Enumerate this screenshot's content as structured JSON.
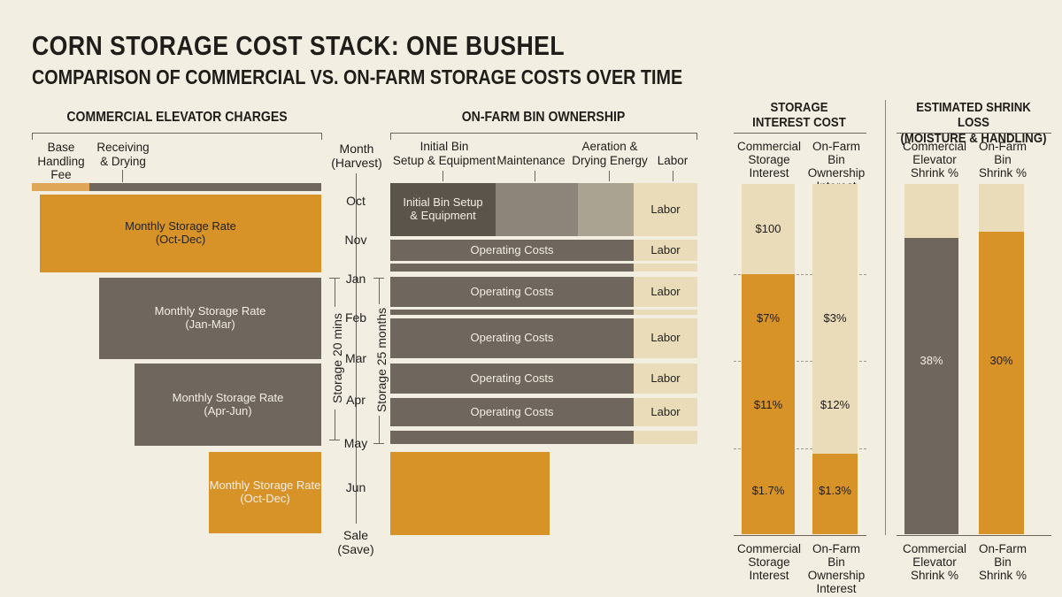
{
  "title": "CORN STORAGE COST STACK: ONE BUSHEL",
  "subtitle": "COMPARISON OF COMMERCIAL VS. ON-FARM STORAGE COSTS OVER TIME",
  "colors": {
    "orange": "#d79328",
    "gray": "#6f675d",
    "dark_gray": "#5b544b",
    "mid_gray": "#8e857a",
    "light_gray": "#aba392",
    "cream": "#eadcb8",
    "background": "#f3eee2"
  },
  "commercial": {
    "title": "COMMERCIAL ELEVATOR CHARGES",
    "headers": [
      "Base\nHandling\nFee",
      "Receiving\n& Drying"
    ],
    "blocks": [
      {
        "label": "Monthly Storage Rate\n(Oct-Dec)",
        "color": "orange"
      },
      {
        "label": "Monthly Storage Rate\n(Jan-Mar)",
        "color": "gray"
      },
      {
        "label": "Monthly Storage Rate\n(Apr-Jun)",
        "color": "gray"
      },
      {
        "label": "Monthly Storage Rate\n(Oct-Dec)",
        "color": "orange"
      }
    ],
    "duration_label": "Storage 20 mins"
  },
  "timeline": {
    "header": "Month\n(Harvest)",
    "months": [
      "Oct",
      "Nov",
      "Jan",
      "Feb",
      "Mar",
      "Apr",
      "May",
      "Jun",
      "Sale\n(Save)"
    ]
  },
  "onfarm": {
    "title": "ON-FARM BIN OWNERSHIP",
    "headers": [
      "Initial Bin\nSetup & Equipment",
      "Maintenance",
      "Aeration &\nDrying Energy",
      "Labor"
    ],
    "setup_label": "Initial Bin Setup\n& Equipment",
    "operating_label": "Operating Costs",
    "labor_label": "Labor",
    "duration_label": "Storage 25 months"
  },
  "interest": {
    "title": "STORAGE\nINTEREST COST",
    "columns": [
      "Commercial\nStorage\nInterest",
      "On-Farm Bin\nOwnership\nInterest"
    ],
    "commercial_segments": [
      "$100",
      "$7%",
      "$11%",
      "$1.7%"
    ],
    "onfarm_segments": [
      "$3%",
      "$12%",
      "$1.3%"
    ]
  },
  "shrink": {
    "title": "ESTIMATED SHRINK LOSS\n(MOISTURE & HANDLING)",
    "columns": [
      "Commercial\nElevator\nShrink %",
      "On-Farm\nBin\nShrink %"
    ],
    "footers": [
      "Commercial\nElevator\nShrink %",
      "On-Farm\nBin\nShrink %"
    ],
    "commercial_value": "38%",
    "onfarm_value": "30%"
  }
}
